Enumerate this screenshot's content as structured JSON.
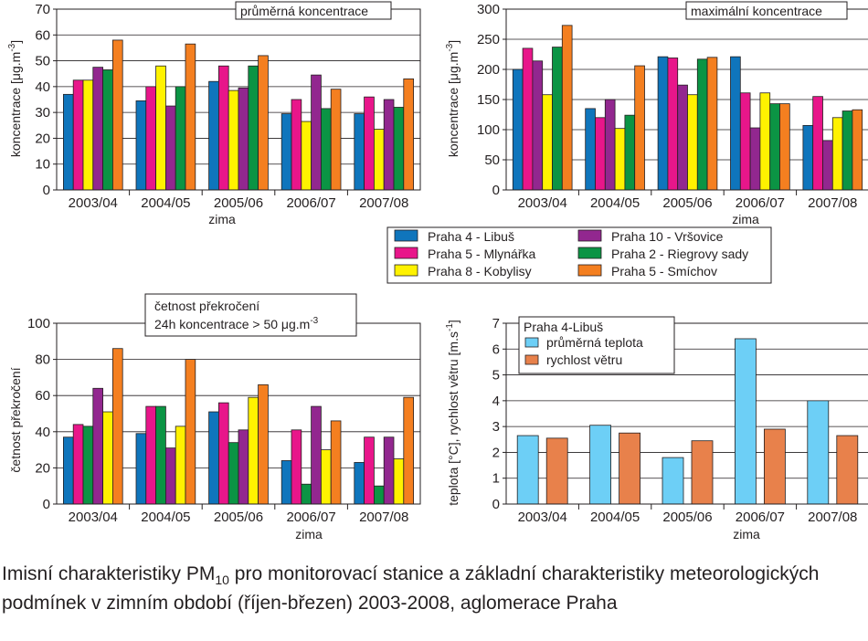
{
  "legend": [
    {
      "name": "Praha 4 - Libuš",
      "color": "#0f75bc"
    },
    {
      "name": "Praha 5 - Mlynářka",
      "color": "#e8168a"
    },
    {
      "name": "Praha 8 - Kobylisy",
      "color": "#fff200"
    },
    {
      "name": "Praha 10 - Vršovice",
      "color": "#92278f"
    },
    {
      "name": "Praha 2 - Riegrovy sady",
      "color": "#0b9444"
    },
    {
      "name": "Praha 5 - Smíchov",
      "color": "#f47f20"
    }
  ],
  "caption": {
    "part1": "Imisní charakteristiky PM",
    "sub": "10",
    "part2": " pro monitorovací stanice a  základní charakteristiky meteorologických podmínek v zimním období (říjen-březen) 2003-2008, aglomerace Praha"
  },
  "chart_data": [
    {
      "type": "bar",
      "title": "průměrná koncentrace",
      "xlabel": "zima",
      "ylabel": "koncentrace [μg.m-3]",
      "ylim": [
        0,
        70
      ],
      "ytick_step": 10,
      "categories": [
        "2003/04",
        "2004/05",
        "2005/06",
        "2006/07",
        "2007/08"
      ],
      "series": [
        {
          "name": "Praha 4 - Libuš",
          "color": "#0f75bc",
          "values": [
            37,
            34.5,
            42,
            29.5,
            29.5
          ]
        },
        {
          "name": "Praha 5 - Mlynářka",
          "color": "#e8168a",
          "values": [
            42.5,
            40,
            48,
            35,
            36
          ]
        },
        {
          "name": "Praha 8 - Kobylisy",
          "color": "#fff200",
          "values": [
            42.5,
            48,
            38.5,
            26.5,
            23.5
          ]
        },
        {
          "name": "Praha 10 - Vršovice",
          "color": "#92278f",
          "values": [
            47.5,
            32.5,
            39.5,
            44.5,
            35
          ]
        },
        {
          "name": "Praha 2 - Riegrovy sady",
          "color": "#0b9444",
          "values": [
            46.5,
            40,
            48,
            31.5,
            32
          ]
        },
        {
          "name": "Praha 5 - Smíchov",
          "color": "#f47f20",
          "values": [
            58,
            56.5,
            52,
            39,
            43
          ]
        }
      ]
    },
    {
      "type": "bar",
      "title": "maximální koncentrace",
      "xlabel": "zima",
      "ylabel": "koncentrace [μg.m-3]",
      "ylim": [
        0,
        300
      ],
      "ytick_step": 50,
      "categories": [
        "2003/04",
        "2004/05",
        "2005/06",
        "2006/07",
        "2007/08"
      ],
      "series": [
        {
          "name": "Praha 4 - Libuš",
          "color": "#0f75bc",
          "values": [
            200,
            135,
            221,
            221,
            107
          ]
        },
        {
          "name": "Praha 5 - Mlynářka",
          "color": "#e8168a",
          "values": [
            235,
            120,
            219,
            161,
            155
          ]
        },
        {
          "name": "Praha 10 - Vršovice",
          "color": "#92278f",
          "values": [
            214,
            150,
            174,
            103,
            82
          ]
        },
        {
          "name": "Praha 8 - Kobylisy",
          "color": "#fff200",
          "values": [
            158,
            102,
            158,
            161,
            120
          ]
        },
        {
          "name": "Praha 2 - Riegrovy sady",
          "color": "#0b9444",
          "values": [
            237,
            124,
            217,
            143,
            131
          ]
        },
        {
          "name": "Praha 5 - Smíchov",
          "color": "#f47f20",
          "values": [
            273,
            206,
            220,
            143,
            133
          ]
        }
      ]
    },
    {
      "type": "bar",
      "title": "četnost překročení",
      "title2": "24h koncentrace > 50 μg.m-3",
      "xlabel": "zima",
      "ylabel": "četnost překročení",
      "ylim": [
        0,
        100
      ],
      "ytick_step": 20,
      "categories": [
        "2003/04",
        "2004/05",
        "2005/06",
        "2006/07",
        "2007/08"
      ],
      "series": [
        {
          "name": "Praha 4 - Libuš",
          "color": "#0f75bc",
          "values": [
            37,
            39,
            51,
            24,
            23
          ]
        },
        {
          "name": "Praha 5 - Mlynářka",
          "color": "#e8168a",
          "values": [
            44,
            54,
            56,
            41,
            37
          ]
        },
        {
          "name": "Praha 2 - Riegrovy sady",
          "color": "#0b9444",
          "values": [
            43,
            54,
            34,
            11,
            10
          ]
        },
        {
          "name": "Praha 10 - Vršovice",
          "color": "#92278f",
          "values": [
            64,
            31,
            41,
            54,
            37
          ]
        },
        {
          "name": "Praha 8 - Kobylisy",
          "color": "#fff200",
          "values": [
            51,
            43,
            59,
            30,
            25
          ]
        },
        {
          "name": "Praha 5 - Smíchov",
          "color": "#f47f20",
          "values": [
            86,
            80,
            66,
            46,
            59
          ]
        }
      ]
    },
    {
      "type": "bar",
      "title": "Praha 4-Libuš",
      "xlabel": "zima",
      "ylabel": "teplota [°C], rychlost větru [m.s-1]",
      "ylim": [
        0,
        7
      ],
      "ytick_step": 1,
      "categories": [
        "2003/04",
        "2004/05",
        "2005/06",
        "2006/07",
        "2007/08"
      ],
      "series": [
        {
          "name": "průměrná teplota",
          "color": "#6dcff6",
          "values": [
            2.65,
            3.05,
            1.8,
            6.4,
            4.0
          ]
        },
        {
          "name": "rychlost větru",
          "color": "#e8814b",
          "values": [
            2.55,
            2.75,
            2.45,
            2.9,
            2.65
          ]
        }
      ]
    }
  ]
}
